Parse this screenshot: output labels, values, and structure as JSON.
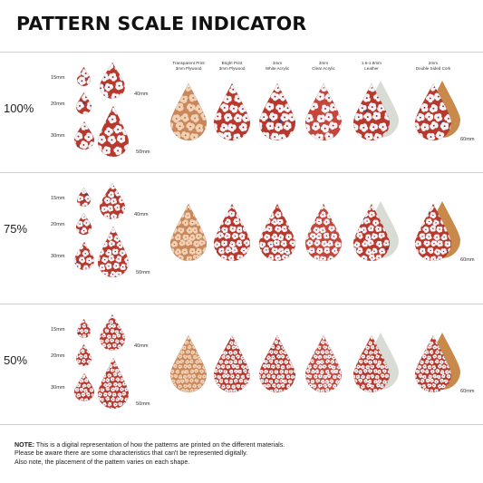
{
  "title": "PATTERN SCALE INDICATOR",
  "rows": [
    {
      "scale": "100%"
    },
    {
      "scale": "75%"
    },
    {
      "scale": "50%"
    }
  ],
  "size_labels": {
    "s15": "15mm",
    "s20": "20mm",
    "s30": "30mm",
    "s40": "40mm",
    "s50": "50mm",
    "s60": "60mm"
  },
  "materials": [
    {
      "line1": "Transparent Print",
      "line2": "3mm Plywood"
    },
    {
      "line1": "Bright Print",
      "line2": "3mm Plywood"
    },
    {
      "line1": "3mm",
      "line2": "White Acrylic"
    },
    {
      "line1": "3mm",
      "line2": "Clear Acrylic"
    },
    {
      "line1": "1.6-1.8mm",
      "line2": "Leather"
    },
    {
      "line1": "2mm",
      "line2": "Double Sided Cork"
    }
  ],
  "note": {
    "label": "NOTE:",
    "line1": " This is a digital representation of how the patterns are printed on the different materials.",
    "line2": "Please be aware there are some characteristics that can't be represented digitally.",
    "line3": "Also note, the placement of the pattern varies on each shape."
  },
  "colors": {
    "pattern_red": "#b8382b",
    "flower_white": "#f3f2f6",
    "plywood": "#c9875a",
    "leather": "#d9dcd5",
    "cork": "#c8894a",
    "navy": "#3c3f6e"
  }
}
